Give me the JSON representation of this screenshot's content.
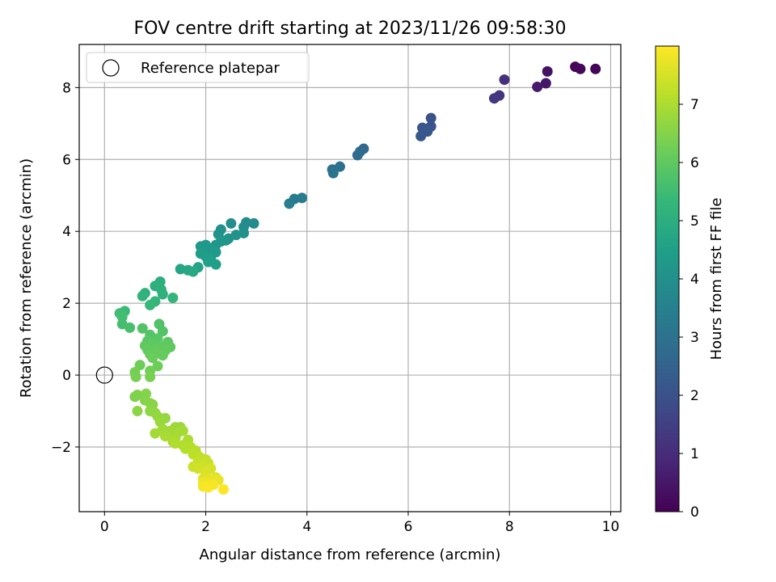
{
  "chart_data": {
    "type": "scatter",
    "title": "FOV centre drift starting at 2023/11/26 09:58:30",
    "xlabel": "Angular distance from reference (arcmin)",
    "ylabel": "Rotation from reference (arcmin)",
    "xlim": [
      -0.5,
      10.2
    ],
    "ylim": [
      -3.8,
      9.2
    ],
    "xticks": [
      0,
      2,
      4,
      6,
      8,
      10
    ],
    "yticks": [
      -2,
      0,
      2,
      4,
      6,
      8
    ],
    "xtick_labels": [
      "0",
      "2",
      "4",
      "6",
      "8",
      "10"
    ],
    "ytick_labels": [
      "−2",
      "0",
      "2",
      "4",
      "6",
      "8"
    ],
    "grid": true,
    "legend": {
      "position": "top-left",
      "label": "Reference platepar"
    },
    "reference_point": {
      "x": 0,
      "y": 0
    },
    "colorbar": {
      "label": "Hours from first FF file",
      "range": [
        0,
        8
      ],
      "ticks": [
        0,
        1,
        2,
        3,
        4,
        5,
        6,
        7
      ],
      "tick_labels": [
        "0",
        "1",
        "2",
        "3",
        "4",
        "5",
        "6",
        "7"
      ],
      "colormap": "viridis",
      "stops": [
        "#440154",
        "#482878",
        "#3e4a89",
        "#31688e",
        "#26828e",
        "#1f9e89",
        "#35b779",
        "#6ece58",
        "#b5de2b",
        "#fde725"
      ]
    },
    "points": [
      {
        "x": 9.3,
        "y": 8.58,
        "h": 0.1
      },
      {
        "x": 9.4,
        "y": 8.52,
        "h": 0.15
      },
      {
        "x": 9.7,
        "y": 8.52,
        "h": 0.1
      },
      {
        "x": 8.75,
        "y": 8.45,
        "h": 0.4
      },
      {
        "x": 8.72,
        "y": 8.12,
        "h": 0.5
      },
      {
        "x": 8.55,
        "y": 8.02,
        "h": 0.55
      },
      {
        "x": 7.9,
        "y": 8.22,
        "h": 1.1
      },
      {
        "x": 7.8,
        "y": 7.78,
        "h": 1.2
      },
      {
        "x": 7.7,
        "y": 7.7,
        "h": 1.25
      },
      {
        "x": 6.45,
        "y": 7.15,
        "h": 2.0
      },
      {
        "x": 6.45,
        "y": 6.92,
        "h": 2.05
      },
      {
        "x": 6.35,
        "y": 6.85,
        "h": 2.1
      },
      {
        "x": 6.28,
        "y": 6.88,
        "h": 2.1
      },
      {
        "x": 6.38,
        "y": 6.78,
        "h": 2.15
      },
      {
        "x": 6.25,
        "y": 6.65,
        "h": 2.2
      },
      {
        "x": 5.12,
        "y": 6.3,
        "h": 2.7
      },
      {
        "x": 5.05,
        "y": 6.22,
        "h": 2.75
      },
      {
        "x": 5.0,
        "y": 6.12,
        "h": 2.8
      },
      {
        "x": 4.65,
        "y": 5.8,
        "h": 2.95
      },
      {
        "x": 4.5,
        "y": 5.72,
        "h": 3.0
      },
      {
        "x": 4.52,
        "y": 5.62,
        "h": 3.05
      },
      {
        "x": 3.9,
        "y": 4.93,
        "h": 3.3
      },
      {
        "x": 3.75,
        "y": 4.9,
        "h": 3.35
      },
      {
        "x": 3.65,
        "y": 4.77,
        "h": 3.4
      },
      {
        "x": 2.95,
        "y": 4.22,
        "h": 3.8
      },
      {
        "x": 2.8,
        "y": 4.25,
        "h": 3.85
      },
      {
        "x": 2.75,
        "y": 4.12,
        "h": 3.9
      },
      {
        "x": 2.5,
        "y": 4.22,
        "h": 3.95
      },
      {
        "x": 2.3,
        "y": 4.05,
        "h": 4.0
      },
      {
        "x": 2.75,
        "y": 3.95,
        "h": 4.0
      },
      {
        "x": 2.6,
        "y": 3.9,
        "h": 4.05
      },
      {
        "x": 2.25,
        "y": 3.92,
        "h": 4.1
      },
      {
        "x": 2.45,
        "y": 3.8,
        "h": 4.1
      },
      {
        "x": 2.4,
        "y": 3.75,
        "h": 4.15
      },
      {
        "x": 2.3,
        "y": 3.72,
        "h": 4.2
      },
      {
        "x": 2.2,
        "y": 3.62,
        "h": 4.2
      },
      {
        "x": 2.0,
        "y": 3.62,
        "h": 4.25
      },
      {
        "x": 1.9,
        "y": 3.58,
        "h": 4.3
      },
      {
        "x": 2.05,
        "y": 3.5,
        "h": 4.3
      },
      {
        "x": 2.2,
        "y": 3.42,
        "h": 4.35
      },
      {
        "x": 1.9,
        "y": 3.38,
        "h": 4.4
      },
      {
        "x": 2.0,
        "y": 3.3,
        "h": 4.4
      },
      {
        "x": 2.1,
        "y": 3.22,
        "h": 4.45
      },
      {
        "x": 2.05,
        "y": 3.15,
        "h": 4.5
      },
      {
        "x": 2.2,
        "y": 3.08,
        "h": 4.5
      },
      {
        "x": 1.85,
        "y": 3.0,
        "h": 4.6
      },
      {
        "x": 1.5,
        "y": 2.95,
        "h": 4.7
      },
      {
        "x": 1.65,
        "y": 2.92,
        "h": 4.75
      },
      {
        "x": 1.75,
        "y": 2.88,
        "h": 4.8
      },
      {
        "x": 1.1,
        "y": 2.6,
        "h": 5.0
      },
      {
        "x": 1.0,
        "y": 2.48,
        "h": 5.05
      },
      {
        "x": 1.12,
        "y": 2.38,
        "h": 5.1
      },
      {
        "x": 1.15,
        "y": 2.25,
        "h": 5.1
      },
      {
        "x": 0.8,
        "y": 2.28,
        "h": 5.15
      },
      {
        "x": 0.75,
        "y": 2.2,
        "h": 5.2
      },
      {
        "x": 1.35,
        "y": 2.15,
        "h": 5.25
      },
      {
        "x": 1.0,
        "y": 2.05,
        "h": 5.3
      },
      {
        "x": 0.9,
        "y": 1.95,
        "h": 5.35
      },
      {
        "x": 0.4,
        "y": 1.78,
        "h": 5.45
      },
      {
        "x": 0.3,
        "y": 1.72,
        "h": 5.5
      },
      {
        "x": 0.35,
        "y": 1.62,
        "h": 5.55
      },
      {
        "x": 0.35,
        "y": 1.42,
        "h": 5.6
      },
      {
        "x": 0.5,
        "y": 1.32,
        "h": 5.65
      },
      {
        "x": 1.08,
        "y": 1.42,
        "h": 5.75
      },
      {
        "x": 0.75,
        "y": 1.3,
        "h": 5.8
      },
      {
        "x": 1.15,
        "y": 1.22,
        "h": 5.8
      },
      {
        "x": 0.9,
        "y": 1.12,
        "h": 5.85
      },
      {
        "x": 1.05,
        "y": 1.02,
        "h": 5.9
      },
      {
        "x": 0.85,
        "y": 0.95,
        "h": 5.9
      },
      {
        "x": 1.25,
        "y": 0.92,
        "h": 5.95
      },
      {
        "x": 0.95,
        "y": 0.88,
        "h": 5.95
      },
      {
        "x": 0.8,
        "y": 0.82,
        "h": 6.0
      },
      {
        "x": 1.1,
        "y": 0.8,
        "h": 6.0
      },
      {
        "x": 1.3,
        "y": 0.78,
        "h": 6.0
      },
      {
        "x": 1.0,
        "y": 0.72,
        "h": 6.05
      },
      {
        "x": 0.85,
        "y": 0.7,
        "h": 6.05
      },
      {
        "x": 1.2,
        "y": 0.68,
        "h": 6.05
      },
      {
        "x": 1.05,
        "y": 0.62,
        "h": 6.1
      },
      {
        "x": 0.9,
        "y": 0.58,
        "h": 6.1
      },
      {
        "x": 1.15,
        "y": 0.55,
        "h": 6.1
      },
      {
        "x": 0.95,
        "y": 0.48,
        "h": 6.15
      },
      {
        "x": 0.7,
        "y": 0.28,
        "h": 6.2
      },
      {
        "x": 1.05,
        "y": 0.25,
        "h": 6.2
      },
      {
        "x": 0.9,
        "y": 0.12,
        "h": 6.25
      },
      {
        "x": 0.6,
        "y": 0.08,
        "h": 6.3
      },
      {
        "x": 0.62,
        "y": -0.05,
        "h": 6.35
      },
      {
        "x": 0.9,
        "y": -0.05,
        "h": 6.35
      },
      {
        "x": 0.65,
        "y": -0.55,
        "h": 6.45
      },
      {
        "x": 0.6,
        "y": -0.6,
        "h": 6.45
      },
      {
        "x": 0.82,
        "y": -0.52,
        "h": 6.5
      },
      {
        "x": 0.8,
        "y": -0.7,
        "h": 6.5
      },
      {
        "x": 0.9,
        "y": -0.78,
        "h": 6.55
      },
      {
        "x": 0.95,
        "y": -0.82,
        "h": 6.55
      },
      {
        "x": 0.65,
        "y": -1.0,
        "h": 6.6
      },
      {
        "x": 0.9,
        "y": -1.0,
        "h": 6.6
      },
      {
        "x": 1.0,
        "y": -1.05,
        "h": 6.65
      },
      {
        "x": 1.05,
        "y": -1.15,
        "h": 6.7
      },
      {
        "x": 1.2,
        "y": -1.2,
        "h": 6.7
      },
      {
        "x": 1.1,
        "y": -1.3,
        "h": 6.75
      },
      {
        "x": 1.4,
        "y": -1.45,
        "h": 6.8
      },
      {
        "x": 1.5,
        "y": -1.45,
        "h": 6.8
      },
      {
        "x": 1.15,
        "y": -1.5,
        "h": 6.85
      },
      {
        "x": 1.3,
        "y": -1.55,
        "h": 6.85
      },
      {
        "x": 1.55,
        "y": -1.55,
        "h": 6.9
      },
      {
        "x": 1.45,
        "y": -1.6,
        "h": 6.9
      },
      {
        "x": 1.0,
        "y": -1.62,
        "h": 6.9
      },
      {
        "x": 1.2,
        "y": -1.7,
        "h": 6.95
      },
      {
        "x": 1.4,
        "y": -1.75,
        "h": 6.95
      },
      {
        "x": 1.65,
        "y": -1.8,
        "h": 7.0
      },
      {
        "x": 1.35,
        "y": -1.85,
        "h": 7.0
      },
      {
        "x": 1.4,
        "y": -1.9,
        "h": 7.05
      },
      {
        "x": 1.55,
        "y": -1.95,
        "h": 7.05
      },
      {
        "x": 1.7,
        "y": -2.0,
        "h": 7.1
      },
      {
        "x": 1.6,
        "y": -2.05,
        "h": 7.1
      },
      {
        "x": 1.8,
        "y": -2.1,
        "h": 7.15
      },
      {
        "x": 1.75,
        "y": -2.2,
        "h": 7.2
      },
      {
        "x": 1.85,
        "y": -2.25,
        "h": 7.2
      },
      {
        "x": 1.9,
        "y": -2.3,
        "h": 7.25
      },
      {
        "x": 2.0,
        "y": -2.35,
        "h": 7.3
      },
      {
        "x": 1.85,
        "y": -2.4,
        "h": 7.3
      },
      {
        "x": 2.05,
        "y": -2.45,
        "h": 7.35
      },
      {
        "x": 1.95,
        "y": -2.5,
        "h": 7.4
      },
      {
        "x": 1.75,
        "y": -2.55,
        "h": 7.4
      },
      {
        "x": 1.85,
        "y": -2.6,
        "h": 7.45
      },
      {
        "x": 2.1,
        "y": -2.6,
        "h": 7.5
      },
      {
        "x": 2.0,
        "y": -2.7,
        "h": 7.55
      },
      {
        "x": 2.2,
        "y": -2.85,
        "h": 7.6
      },
      {
        "x": 1.95,
        "y": -2.88,
        "h": 7.65
      },
      {
        "x": 2.1,
        "y": -2.9,
        "h": 7.7
      },
      {
        "x": 2.25,
        "y": -2.92,
        "h": 7.75
      },
      {
        "x": 1.95,
        "y": -3.0,
        "h": 7.8
      },
      {
        "x": 2.05,
        "y": -3.05,
        "h": 7.85
      },
      {
        "x": 2.15,
        "y": -3.05,
        "h": 7.9
      },
      {
        "x": 1.95,
        "y": -3.1,
        "h": 7.9
      },
      {
        "x": 2.05,
        "y": -3.12,
        "h": 7.95
      },
      {
        "x": 2.35,
        "y": -3.18,
        "h": 8.0
      }
    ]
  }
}
